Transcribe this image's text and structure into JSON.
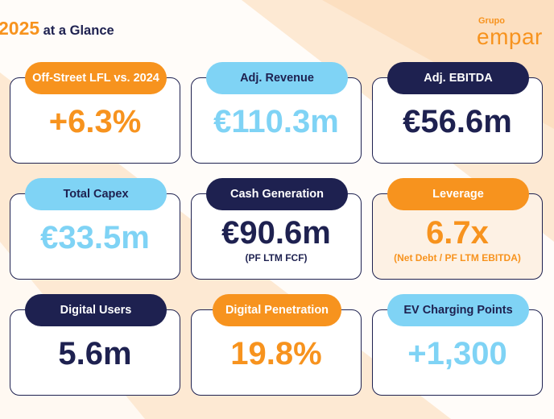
{
  "header": {
    "year": "2025",
    "title": "at a Glance",
    "brand_small": "Grupo",
    "brand_big": "empar"
  },
  "colors": {
    "orange": "#f7931e",
    "light_blue": "#7fd3f5",
    "navy": "#1e2150",
    "background": "#fde9d3"
  },
  "cards": [
    {
      "label": "Off-Street LFL vs. 2024",
      "value": "+6.3%",
      "sub": ""
    },
    {
      "label": "Adj. Revenue",
      "value": "€110.3m",
      "sub": ""
    },
    {
      "label": "Adj. EBITDA",
      "value": "€56.6m",
      "sub": ""
    },
    {
      "label": "Total Capex",
      "value": "€33.5m",
      "sub": ""
    },
    {
      "label": "Cash Generation",
      "value": "€90.6m",
      "sub": "(PF LTM FCF)"
    },
    {
      "label": "Leverage",
      "value": "6.7x",
      "sub": "(Net Debt / PF LTM EBITDA)"
    },
    {
      "label": "Digital Users",
      "value": "5.6m",
      "sub": ""
    },
    {
      "label": "Digital Penetration",
      "value": "19.8%",
      "sub": ""
    },
    {
      "label": "EV Charging Points",
      "value": "+1,300",
      "sub": ""
    }
  ]
}
